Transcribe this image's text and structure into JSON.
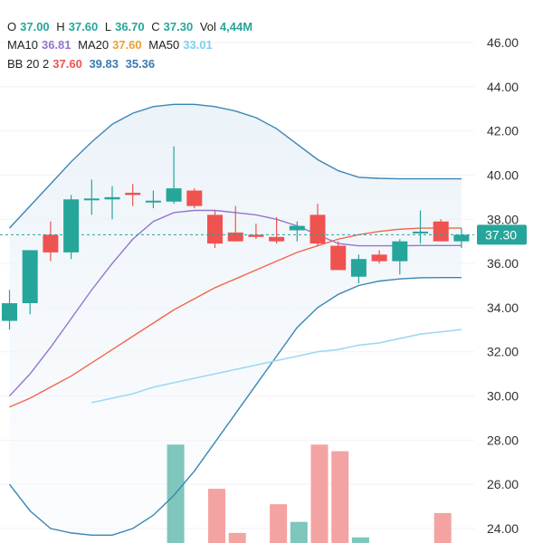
{
  "legend": {
    "ohlc": {
      "o_label": "O",
      "o": "37.00",
      "h_label": "H",
      "h": "37.60",
      "l_label": "L",
      "l": "36.70",
      "c_label": "C",
      "c": "37.30",
      "vol_label": "Vol",
      "vol": "4,44M"
    },
    "ma": {
      "ma10_label": "MA10",
      "ma10": "36.81",
      "ma20_label": "MA20",
      "ma20": "37.60",
      "ma50_label": "MA50",
      "ma50": "33.01"
    },
    "bb": {
      "label": "BB 20 2",
      "mid": "37.60",
      "upper": "39.83",
      "lower": "35.36"
    }
  },
  "colors": {
    "up": "#26a69a",
    "down": "#ef5350",
    "up_volume": "#7fc6bd",
    "down_volume": "#f4a3a3",
    "ma10": "#9575cd",
    "ma20": "#f4664a",
    "ma50": "#9fd8f2",
    "bb": "#3a86b5",
    "last_price": "#26a69a"
  },
  "last_price_label": "37.30",
  "chart_data": {
    "type": "candlestick",
    "ylim": [
      23.5,
      47.2
    ],
    "y_ticks": [
      "46.00",
      "44.00",
      "42.00",
      "40.00",
      "38.00",
      "36.00",
      "34.00",
      "32.00",
      "30.00",
      "28.00",
      "26.00",
      "24.00"
    ],
    "last_price": 37.3,
    "candles": [
      {
        "o": 33.4,
        "h": 34.8,
        "l": 33.0,
        "c": 34.2
      },
      {
        "o": 34.2,
        "h": 36.6,
        "l": 33.7,
        "c": 36.6
      },
      {
        "o": 37.3,
        "h": 37.9,
        "l": 36.1,
        "c": 36.5
      },
      {
        "o": 36.5,
        "h": 39.1,
        "l": 36.2,
        "c": 38.9
      },
      {
        "o": 38.9,
        "h": 39.8,
        "l": 38.2,
        "c": 38.9
      },
      {
        "o": 38.9,
        "h": 39.5,
        "l": 38.0,
        "c": 39.0
      },
      {
        "o": 39.2,
        "h": 39.6,
        "l": 38.6,
        "c": 39.1
      },
      {
        "o": 38.8,
        "h": 39.3,
        "l": 38.5,
        "c": 38.8
      },
      {
        "o": 38.8,
        "h": 41.3,
        "l": 38.7,
        "c": 39.4
      },
      {
        "o": 39.3,
        "h": 39.4,
        "l": 38.5,
        "c": 38.6
      },
      {
        "o": 38.2,
        "h": 38.4,
        "l": 36.7,
        "c": 36.9
      },
      {
        "o": 37.4,
        "h": 38.6,
        "l": 37.0,
        "c": 37.0
      },
      {
        "o": 37.3,
        "h": 37.8,
        "l": 37.1,
        "c": 37.2
      },
      {
        "o": 37.2,
        "h": 38.1,
        "l": 36.9,
        "c": 37.0
      },
      {
        "o": 37.5,
        "h": 37.9,
        "l": 37.0,
        "c": 37.7
      },
      {
        "o": 38.2,
        "h": 38.7,
        "l": 36.8,
        "c": 36.9
      },
      {
        "o": 36.8,
        "h": 37.0,
        "l": 35.7,
        "c": 35.7
      },
      {
        "o": 35.4,
        "h": 36.4,
        "l": 35.1,
        "c": 36.2
      },
      {
        "o": 36.4,
        "h": 36.6,
        "l": 36.0,
        "c": 36.1
      },
      {
        "o": 36.1,
        "h": 37.1,
        "l": 35.5,
        "c": 37.0
      },
      {
        "o": 37.4,
        "h": 38.4,
        "l": 36.9,
        "c": 37.4
      },
      {
        "o": 37.9,
        "h": 38.0,
        "l": 37.0,
        "c": 37.0
      },
      {
        "o": 37.0,
        "h": 37.6,
        "l": 36.7,
        "c": 37.3
      }
    ],
    "volume": [
      null,
      null,
      null,
      null,
      null,
      null,
      null,
      null,
      27.8,
      null,
      25.8,
      23.8,
      null,
      25.1,
      24.3,
      27.8,
      27.5,
      23.6,
      null,
      null,
      null,
      24.7,
      null
    ],
    "bb_upper": [
      37.6,
      38.6,
      39.6,
      40.6,
      41.5,
      42.3,
      42.8,
      43.1,
      43.2,
      43.2,
      43.1,
      42.9,
      42.6,
      42.1,
      41.4,
      40.7,
      40.2,
      39.9,
      39.85,
      39.83,
      39.83,
      39.83,
      39.83
    ],
    "bb_lower": [
      26.0,
      24.8,
      24.0,
      23.8,
      23.7,
      23.7,
      24.0,
      24.6,
      25.5,
      26.6,
      27.9,
      29.2,
      30.5,
      31.8,
      33.1,
      34.0,
      34.6,
      35.0,
      35.2,
      35.3,
      35.35,
      35.36,
      35.36
    ],
    "ma10": [
      30.0,
      31.0,
      32.2,
      33.5,
      34.8,
      36.0,
      37.1,
      37.9,
      38.3,
      38.4,
      38.4,
      38.3,
      38.2,
      38.0,
      37.7,
      37.3,
      36.9,
      36.8,
      36.8,
      36.8,
      36.81,
      36.81,
      36.81
    ],
    "ma20": [
      29.5,
      29.9,
      30.4,
      30.9,
      31.5,
      32.1,
      32.7,
      33.3,
      33.9,
      34.4,
      34.9,
      35.3,
      35.7,
      36.1,
      36.5,
      36.8,
      37.1,
      37.3,
      37.45,
      37.55,
      37.6,
      37.6,
      37.6
    ],
    "ma50_start_index": 4,
    "ma50": [
      null,
      null,
      null,
      null,
      29.7,
      29.9,
      30.1,
      30.4,
      30.6,
      30.8,
      31.0,
      31.2,
      31.4,
      31.6,
      31.8,
      32.0,
      32.1,
      32.3,
      32.4,
      32.6,
      32.8,
      32.9,
      33.01
    ]
  }
}
